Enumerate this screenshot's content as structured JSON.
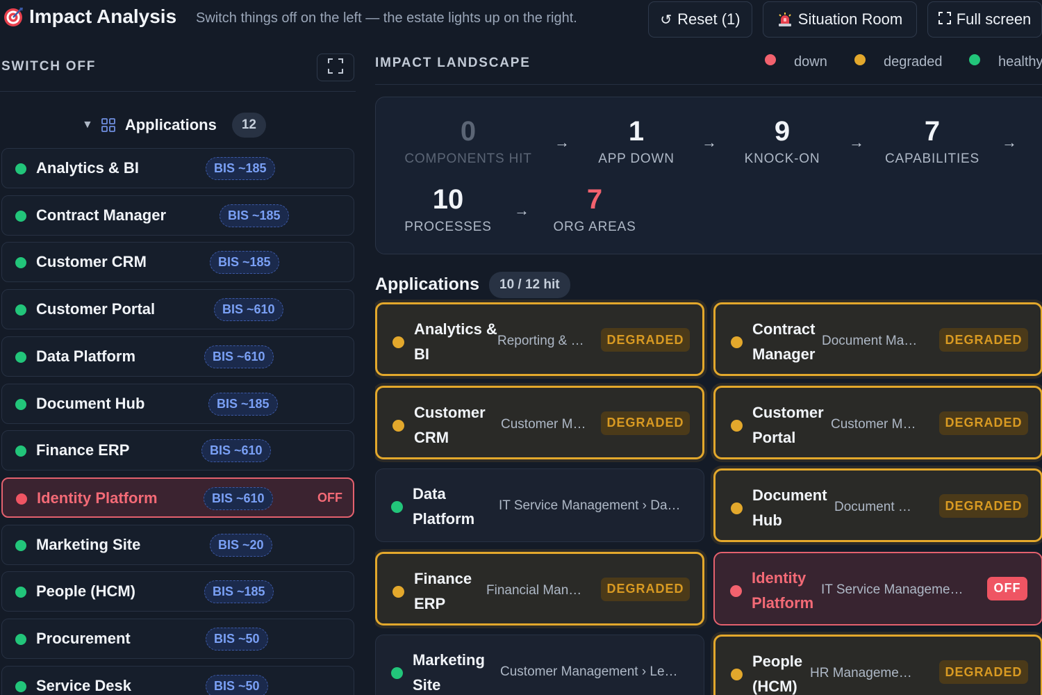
{
  "header": {
    "title": "Impact Analysis",
    "subtitle": "Switch things off on the left — the estate lights up on the right.",
    "reset_label": "Reset (1)",
    "situation_label": "Situation Room",
    "fullscreen_label": "Full screen",
    "reset_glyph": "↺"
  },
  "left": {
    "title": "SWITCH OFF",
    "group_label": "Applications",
    "group_count": "12",
    "items": [
      {
        "name": "Analytics & BI",
        "bis": "BIS ~185",
        "state": "on"
      },
      {
        "name": "Contract Manager",
        "bis": "BIS ~185",
        "state": "on"
      },
      {
        "name": "Customer CRM",
        "bis": "BIS ~185",
        "state": "on"
      },
      {
        "name": "Customer Portal",
        "bis": "BIS ~610",
        "state": "on"
      },
      {
        "name": "Data Platform",
        "bis": "BIS ~610",
        "state": "on"
      },
      {
        "name": "Document Hub",
        "bis": "BIS ~185",
        "state": "on"
      },
      {
        "name": "Finance ERP",
        "bis": "BIS ~610",
        "state": "on"
      },
      {
        "name": "Identity Platform",
        "bis": "BIS ~610",
        "state": "off",
        "off_label": "OFF"
      },
      {
        "name": "Marketing Site",
        "bis": "BIS ~20",
        "state": "on"
      },
      {
        "name": "People (HCM)",
        "bis": "BIS ~185",
        "state": "on"
      },
      {
        "name": "Procurement",
        "bis": "BIS ~50",
        "state": "on"
      },
      {
        "name": "Service Desk",
        "bis": "BIS ~50",
        "state": "on"
      }
    ]
  },
  "right": {
    "title": "IMPACT LANDSCAPE",
    "legend": [
      {
        "label": "down",
        "color": "#f2626e"
      },
      {
        "label": "degraded",
        "color": "#e3a82c"
      },
      {
        "label": "healthy",
        "color": "#22c57a"
      }
    ],
    "stats": [
      {
        "value": "0",
        "label": "COMPONENTS HIT"
      },
      {
        "value": "1",
        "label": "APP DOWN"
      },
      {
        "value": "9",
        "label": "KNOCK-ON"
      },
      {
        "value": "7",
        "label": "CAPABILITIES"
      },
      {
        "value": "10",
        "label": "PROCESSES"
      },
      {
        "value": "7",
        "label": "ORG AREAS"
      }
    ],
    "arrow": "→",
    "apps_title": "Applications",
    "apps_hit": "10 / 12 hit",
    "cards": [
      {
        "name": "Analytics & BI",
        "path": "Reporting & …",
        "status": "DEGRADED",
        "state": "degraded"
      },
      {
        "name": "Contract Manager",
        "path": "Document Ma…",
        "status": "DEGRADED",
        "state": "degraded"
      },
      {
        "name": "Customer CRM",
        "path": "Customer M…",
        "status": "DEGRADED",
        "state": "degraded"
      },
      {
        "name": "Customer Portal",
        "path": "Customer M…",
        "status": "DEGRADED",
        "state": "degraded"
      },
      {
        "name": "Data Platform",
        "path": "IT Service Management › Da…",
        "status": "",
        "state": "healthy"
      },
      {
        "name": "Document Hub",
        "path": "Document …",
        "status": "DEGRADED",
        "state": "degraded"
      },
      {
        "name": "Finance ERP",
        "path": "Financial Man…",
        "status": "DEGRADED",
        "state": "degraded"
      },
      {
        "name": "Identity Platform",
        "path": "IT Service Manageme…",
        "status": "OFF",
        "state": "down"
      },
      {
        "name": "Marketing Site",
        "path": "Customer Management › Le…",
        "status": "",
        "state": "healthy"
      },
      {
        "name": "People (HCM)",
        "path": "HR Manageme…",
        "status": "DEGRADED",
        "state": "degraded"
      }
    ]
  },
  "colors": {
    "down": "#f2626e",
    "degraded": "#e3a82c",
    "healthy": "#22c57a"
  }
}
